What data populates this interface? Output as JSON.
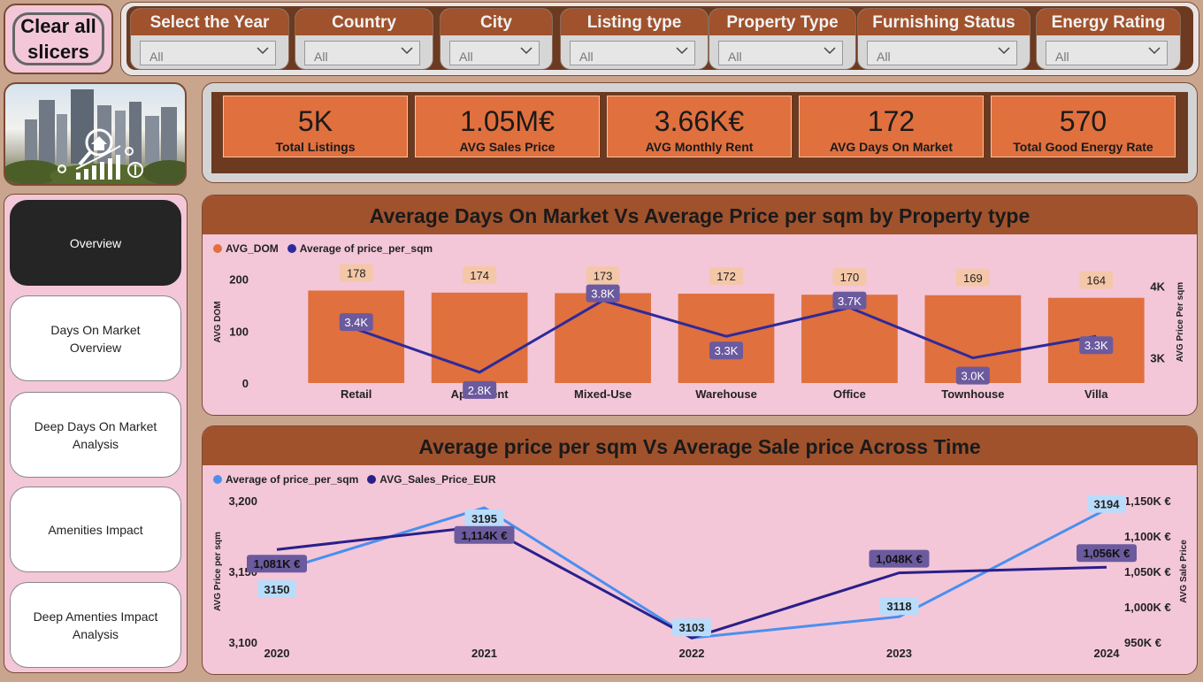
{
  "clear_button": {
    "label": "Clear all\nslicers"
  },
  "slicers": [
    {
      "title": "Select the Year",
      "value": "All"
    },
    {
      "title": "Country",
      "value": "All"
    },
    {
      "title": "City",
      "value": "All"
    },
    {
      "title": "Listing type",
      "value": "All"
    },
    {
      "title": "Property Type",
      "value": "All"
    },
    {
      "title": "Furnishing Status",
      "value": "All"
    },
    {
      "title": "Energy Rating",
      "value": "All"
    }
  ],
  "nav": [
    {
      "label": "Overview",
      "active": true
    },
    {
      "label": "Days On Market Overview"
    },
    {
      "label": "Deep Days On Market Analysis"
    },
    {
      "label": "Amenities Impact"
    },
    {
      "label": "Deep Amenties Impact Analysis"
    }
  ],
  "kpis": [
    {
      "value": "5K",
      "label": "Total Listings"
    },
    {
      "value": "1.05M€",
      "label": "AVG Sales Price"
    },
    {
      "value": "3.66K€",
      "label": "AVG Monthly Rent"
    },
    {
      "value": "172",
      "label": "AVG Days On Market"
    },
    {
      "value": "570",
      "label": "Total Good Energy Rate"
    }
  ],
  "chart_data": [
    {
      "type": "bar",
      "title": "Average Days On Market Vs Average Price per sqm by Property type",
      "categories": [
        "Retail",
        "Apartment",
        "Mixed-Use",
        "Warehouse",
        "Office",
        "Townhouse",
        "Villa"
      ],
      "series": [
        {
          "name": "AVG_DOM",
          "type": "bar",
          "axis": "left",
          "color": "#e0703e",
          "values": [
            178,
            174,
            173,
            172,
            170,
            169,
            164
          ],
          "labels": [
            "178",
            "174",
            "173",
            "172",
            "170",
            "169",
            "164"
          ]
        },
        {
          "name": "Average of price_per_sqm",
          "type": "line",
          "axis": "right",
          "color": "#2e2a9a",
          "values": [
            3400,
            2800,
            3800,
            3300,
            3700,
            3000,
            3300
          ],
          "labels": [
            "3.4K",
            "2.8K",
            "3.8K",
            "3.3K",
            "3.7K",
            "3.0K",
            "3.3K"
          ]
        }
      ],
      "ylabel": "AVG DOM",
      "y2label": "AVG Price Per sqm",
      "y_ticks": [
        "0",
        "100",
        "200"
      ],
      "y2_ticks": [
        "3K",
        "4K"
      ],
      "ylim": [
        0,
        235
      ],
      "y2lim": [
        2650,
        4350
      ],
      "legend": "top-left",
      "grid": false
    },
    {
      "type": "line",
      "title": "Average price per sqm Vs Average Sale price Across Time",
      "categories": [
        "2020",
        "2021",
        "2022",
        "2023",
        "2024"
      ],
      "series": [
        {
          "name": "Average of price_per_sqm",
          "axis": "left",
          "color": "#4a8ff0",
          "values": [
            3150,
            3195,
            3103,
            3118,
            3194
          ],
          "labels": [
            "3150",
            "3195",
            "3103",
            "3118",
            "3194"
          ]
        },
        {
          "name": "AVG_Sales_Price_EUR",
          "axis": "right",
          "color": "#2a1f8a",
          "values": [
            1081,
            1114,
            956,
            1048,
            1056
          ],
          "labels": [
            "1,081K €",
            "1,114K €",
            "",
            "1,048K €",
            "1,056K €"
          ]
        }
      ],
      "ylabel": "AVG Price per sqm",
      "y2label": "AVG Sale Price",
      "y_ticks": [
        "3,100",
        "3,150",
        "3,200"
      ],
      "y2_ticks": [
        "950K €",
        "1,000K €",
        "1,050K €",
        "1,100K €",
        "1,150K €"
      ],
      "ylim": [
        3100,
        3200
      ],
      "y2lim": [
        950,
        1150
      ],
      "legend": "top-left",
      "grid": false
    }
  ]
}
